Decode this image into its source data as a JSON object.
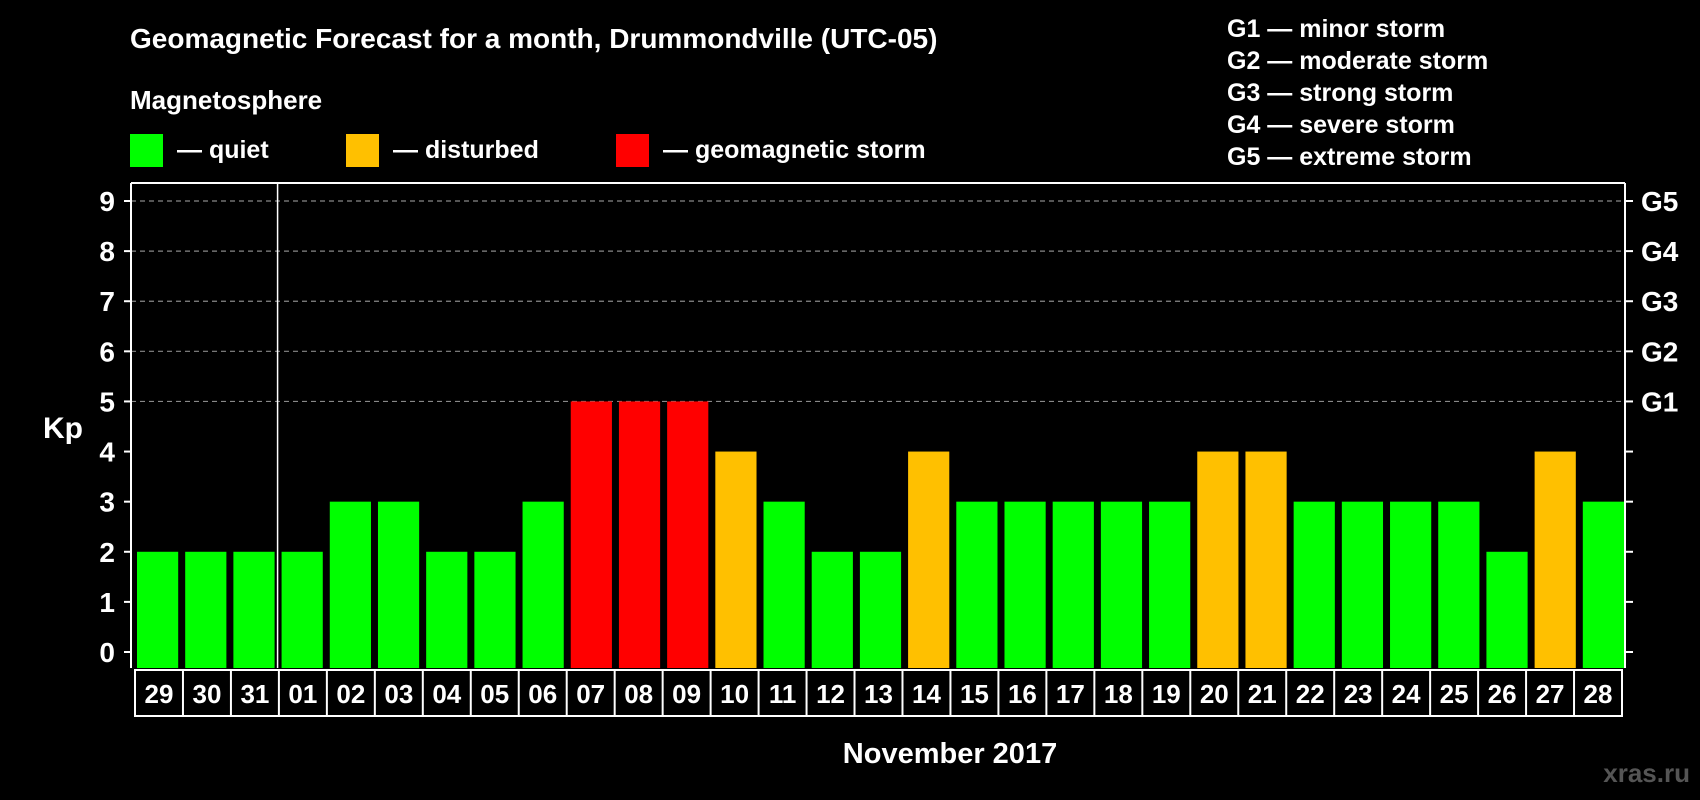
{
  "header": {
    "title": "Geomagnetic Forecast for a month, Drummondville (UTC-05)",
    "magnetosphere_label": "Magnetosphere",
    "legend": [
      {
        "label": "— quiet",
        "color": "#00ff00"
      },
      {
        "label": "— disturbed",
        "color": "#ffc000"
      },
      {
        "label": "— geomagnetic storm",
        "color": "#ff0000"
      }
    ]
  },
  "storm_scale": [
    "G1 — minor storm",
    "G2 — moderate storm",
    "G3 — strong storm",
    "G4 — severe storm",
    "G5 — extreme storm"
  ],
  "watermark": "xras.ru",
  "chart_data": {
    "type": "bar",
    "title": "Geomagnetic Forecast for a month, Drummondville (UTC-05)",
    "xlabel": "November 2017",
    "ylabel": "Kp",
    "ylim": [
      0,
      9
    ],
    "yticks": [
      "0",
      "1",
      "2",
      "3",
      "4",
      "5",
      "6",
      "7",
      "8",
      "9"
    ],
    "right_ticks": [
      {
        "value": 5,
        "label": "G1"
      },
      {
        "value": 6,
        "label": "G2"
      },
      {
        "value": 7,
        "label": "G3"
      },
      {
        "value": 8,
        "label": "G4"
      },
      {
        "value": 9,
        "label": "G5"
      }
    ],
    "grid": "horizontal dashed",
    "categories": [
      "29",
      "30",
      "31",
      "01",
      "02",
      "03",
      "04",
      "05",
      "06",
      "07",
      "08",
      "09",
      "10",
      "11",
      "12",
      "13",
      "14",
      "15",
      "16",
      "17",
      "18",
      "19",
      "20",
      "21",
      "22",
      "23",
      "24",
      "25",
      "26",
      "27",
      "28"
    ],
    "values": [
      2,
      2,
      2,
      2,
      3,
      3,
      2,
      2,
      3,
      5,
      5,
      5,
      4,
      3,
      2,
      2,
      4,
      3,
      3,
      3,
      3,
      3,
      4,
      4,
      3,
      3,
      3,
      3,
      2,
      4,
      3
    ],
    "colors": {
      "quiet": "#00ff00",
      "disturbed": "#ffc000",
      "storm": "#ff0000"
    }
  }
}
